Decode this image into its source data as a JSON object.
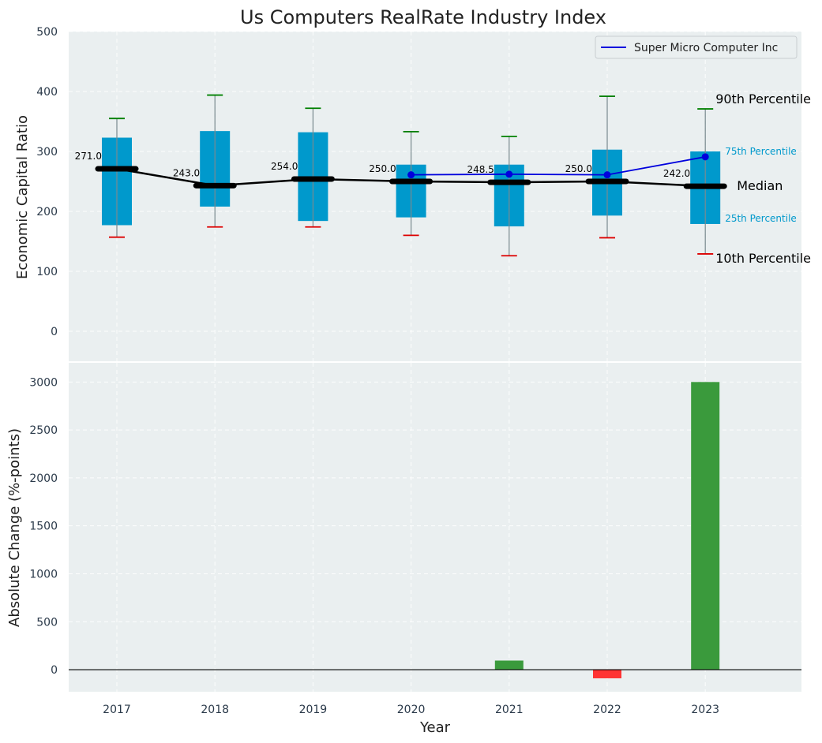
{
  "chart_data": [
    {
      "type": "box",
      "title": "Us Computers RealRate Industry Index",
      "ylabel": "Economic Capital Ratio",
      "ylim": [
        -50,
        500
      ],
      "yticks": [
        0,
        100,
        200,
        300,
        400,
        500
      ],
      "categories": [
        "2017",
        "2018",
        "2019",
        "2020",
        "2021",
        "2022",
        "2023"
      ],
      "percentiles": {
        "p10": [
          157,
          174,
          174,
          160,
          126,
          156,
          129
        ],
        "p25": [
          177,
          208,
          184,
          190,
          175,
          193,
          179
        ],
        "median": [
          271,
          243,
          254,
          250,
          248.5,
          250,
          242
        ],
        "p75": [
          323,
          334,
          332,
          278,
          278,
          303,
          300
        ],
        "p90": [
          355,
          394,
          372,
          333,
          325,
          392,
          371
        ]
      },
      "median_labels": [
        "271.0",
        "243.0",
        "254.0",
        "250.0",
        "248.5",
        "250.0",
        "242.0"
      ],
      "annotations": {
        "p90": "90th Percentile",
        "p75": "75th Percentile",
        "median": "Median",
        "p25": "25th Percentile",
        "p10": "10th Percentile"
      },
      "series": [
        {
          "name": "Super Micro Computer Inc",
          "x": [
            "2020",
            "2021",
            "2022",
            "2023"
          ],
          "values": [
            261,
            262,
            261,
            291
          ]
        }
      ],
      "legend": "top-right",
      "grid": true
    },
    {
      "type": "bar",
      "xlabel": "Year",
      "ylabel": "Absolute Change (%-points)",
      "ylim": [
        -230,
        3200
      ],
      "yticks": [
        0,
        500,
        1000,
        1500,
        2000,
        2500,
        3000
      ],
      "categories": [
        "2017",
        "2018",
        "2019",
        "2020",
        "2021",
        "2022",
        "2023"
      ],
      "values": [
        0,
        0,
        0,
        0,
        95,
        -90,
        3000
      ],
      "grid": true
    }
  ],
  "colors": {
    "background": "#eaeff0",
    "box": "#0099cc",
    "median": "#000000",
    "company_line": "#0000dd",
    "cap_high": "#008000",
    "cap_low": "#dd0000",
    "bar_positive": "#3a9a3c",
    "bar_negative": "#ff3333"
  }
}
